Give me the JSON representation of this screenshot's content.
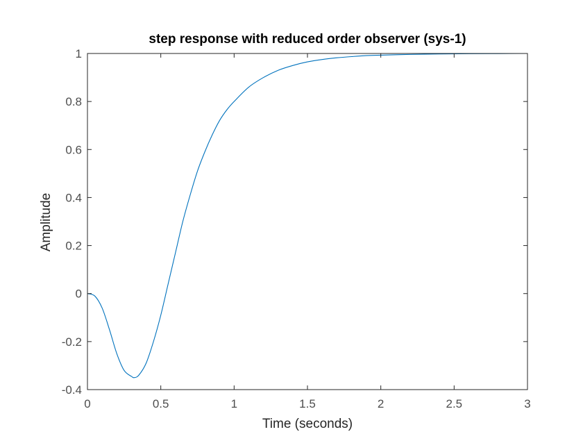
{
  "chart_data": {
    "type": "line",
    "title": "step response with reduced order observer (sys-1)",
    "xlabel": "Time (seconds)",
    "ylabel": "Amplitude",
    "xlim": [
      0,
      3
    ],
    "ylim": [
      -0.4,
      1
    ],
    "xticks": [
      0,
      0.5,
      1,
      1.5,
      2,
      2.5,
      3
    ],
    "xtick_labels": [
      "0",
      "0.5",
      "1",
      "1.5",
      "2",
      "2.5",
      "3"
    ],
    "yticks": [
      -0.4,
      -0.2,
      0,
      0.2,
      0.4,
      0.6,
      0.8,
      1
    ],
    "ytick_labels": [
      "-0.4",
      "-0.2",
      "0",
      "0.2",
      "0.4",
      "0.6",
      "0.8",
      "1"
    ],
    "grid": false,
    "reference_line": {
      "y": 1,
      "style": "dotted",
      "color": "#000000"
    },
    "series": [
      {
        "color": "#0072bd",
        "x": [
          0,
          0.05,
          0.1,
          0.15,
          0.2,
          0.25,
          0.3,
          0.32,
          0.35,
          0.4,
          0.45,
          0.5,
          0.55,
          0.6,
          0.65,
          0.7,
          0.75,
          0.8,
          0.85,
          0.9,
          0.95,
          1.0,
          1.1,
          1.2,
          1.3,
          1.4,
          1.5,
          1.6,
          1.7,
          1.8,
          1.9,
          2.0,
          2.2,
          2.4,
          2.6,
          2.8,
          3.0
        ],
        "y": [
          0,
          -0.01,
          -0.06,
          -0.15,
          -0.25,
          -0.32,
          -0.345,
          -0.35,
          -0.34,
          -0.29,
          -0.2,
          -0.09,
          0.04,
          0.17,
          0.3,
          0.41,
          0.51,
          0.59,
          0.66,
          0.72,
          0.765,
          0.8,
          0.86,
          0.9,
          0.93,
          0.95,
          0.965,
          0.975,
          0.982,
          0.987,
          0.991,
          0.993,
          0.996,
          0.998,
          0.999,
          0.9995,
          1.0
        ]
      }
    ]
  }
}
